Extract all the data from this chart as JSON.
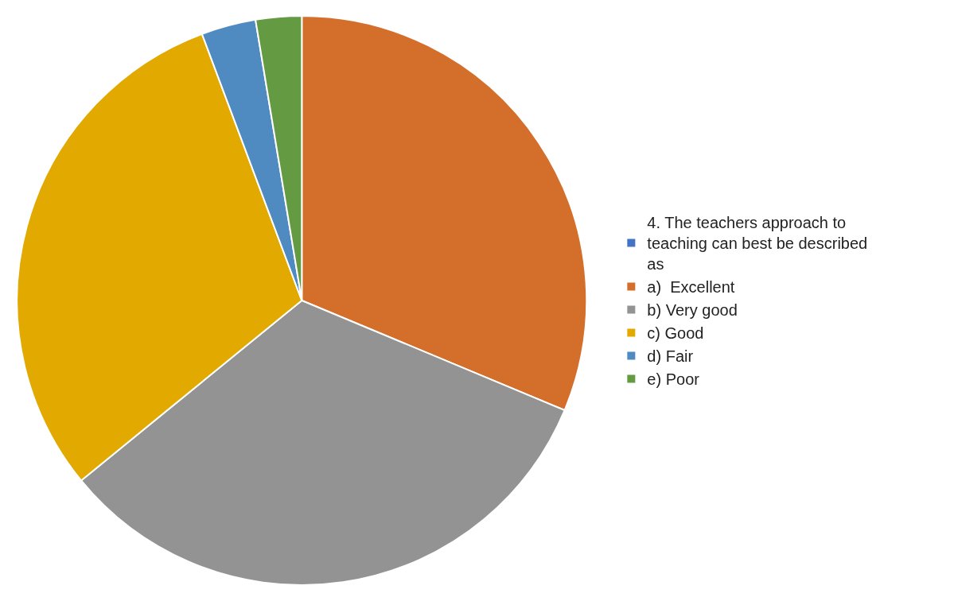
{
  "chart_data": {
    "type": "pie",
    "categories": [
      "4. The teachers approach to teaching can best be described as",
      "a)  Excellent",
      "b) Very good",
      "c) Good",
      "d) Fair",
      "e) Poor"
    ],
    "values": [
      0,
      31.3,
      32.8,
      30.2,
      3.1,
      2.6
    ],
    "colors": [
      "#4472c4",
      "#d46e2b",
      "#939393",
      "#e2a900",
      "#4f8bc0",
      "#649a42"
    ],
    "legend": "right"
  }
}
